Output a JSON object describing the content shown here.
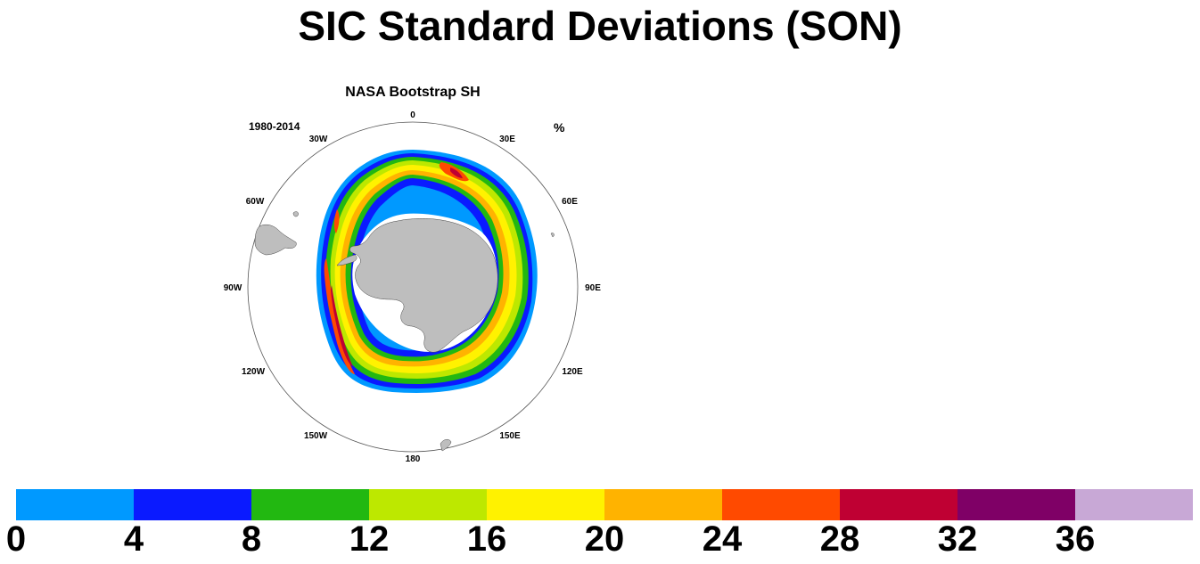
{
  "title": "SIC Standard Deviations (SON)",
  "panel": {
    "subtitle": "NASA Bootstrap SH",
    "period": "1980-2014",
    "units": "%",
    "longitude_labels": [
      "0",
      "30E",
      "60E",
      "90E",
      "120E",
      "150E",
      "180",
      "150W",
      "120W",
      "90W",
      "60W",
      "30W"
    ]
  },
  "colorbar": {
    "colors": [
      "#0099ff",
      "#0a1aff",
      "#22b811",
      "#bde800",
      "#fff200",
      "#ffb300",
      "#ff4a00",
      "#bf0033",
      "#7f0066",
      "#c8a8d6"
    ],
    "labels": [
      "0",
      "4",
      "8",
      "12",
      "16",
      "20",
      "24",
      "28",
      "32",
      "36"
    ]
  },
  "colors": {
    "land": "#bebebe",
    "ice_shelf": "#ffffff"
  }
}
